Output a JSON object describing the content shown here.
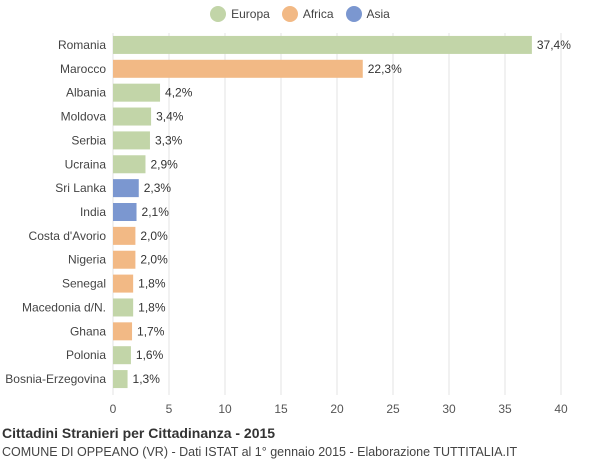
{
  "legend": [
    {
      "name": "Europa",
      "color": "#c2d5a8"
    },
    {
      "name": "Africa",
      "color": "#f2b985"
    },
    {
      "name": "Asia",
      "color": "#7b97d0"
    }
  ],
  "footer": {
    "title": "Cittadini Stranieri per Cittadinanza - 2015",
    "subtitle": "COMUNE DI OPPEANO (VR) - Dati ISTAT al 1° gennaio 2015 - Elaborazione TUTTITALIA.IT"
  },
  "chart_data": {
    "type": "bar",
    "orientation": "horizontal",
    "title": "Cittadini Stranieri per Cittadinanza - 2015",
    "xlim": [
      0,
      40
    ],
    "xticks": [
      0,
      5,
      10,
      15,
      20,
      25,
      30,
      35,
      40
    ],
    "grid": true,
    "legend_position": "top-center",
    "categories": [
      "Romania",
      "Marocco",
      "Albania",
      "Moldova",
      "Serbia",
      "Ucraina",
      "Sri Lanka",
      "India",
      "Costa d'Avorio",
      "Nigeria",
      "Senegal",
      "Macedonia d/N.",
      "Ghana",
      "Polonia",
      "Bosnia-Erzegovina"
    ],
    "values": [
      37.4,
      22.3,
      4.2,
      3.4,
      3.3,
      2.9,
      2.3,
      2.1,
      2.0,
      2.0,
      1.8,
      1.8,
      1.7,
      1.6,
      1.3
    ],
    "labels": [
      "37,4%",
      "22,3%",
      "4,2%",
      "3,4%",
      "3,3%",
      "2,9%",
      "2,3%",
      "2,1%",
      "2,0%",
      "2,0%",
      "1,8%",
      "1,8%",
      "1,7%",
      "1,6%",
      "1,3%"
    ],
    "groups": [
      "Europa",
      "Africa",
      "Europa",
      "Europa",
      "Europa",
      "Europa",
      "Asia",
      "Asia",
      "Africa",
      "Africa",
      "Africa",
      "Europa",
      "Africa",
      "Europa",
      "Europa"
    ]
  }
}
